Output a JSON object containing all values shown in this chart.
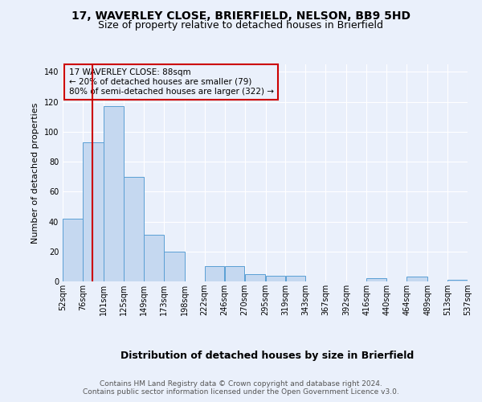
{
  "title_line1": "17, WAVERLEY CLOSE, BRIERFIELD, NELSON, BB9 5HD",
  "title_line2": "Size of property relative to detached houses in Brierfield",
  "xlabel": "Distribution of detached houses by size in Brierfield",
  "ylabel": "Number of detached properties",
  "footer_line1": "Contains HM Land Registry data © Crown copyright and database right 2024.",
  "footer_line2": "Contains public sector information licensed under the Open Government Licence v3.0.",
  "annotation_line1": "17 WAVERLEY CLOSE: 88sqm",
  "annotation_line2": "← 20% of detached houses are smaller (79)",
  "annotation_line3": "80% of semi-detached houses are larger (322) →",
  "property_size": 88,
  "bar_left_edges": [
    52,
    76,
    101,
    125,
    149,
    173,
    198,
    222,
    246,
    270,
    295,
    319,
    343,
    367,
    392,
    416,
    440,
    464,
    489,
    513
  ],
  "bar_widths": [
    24,
    25,
    24,
    24,
    24,
    25,
    24,
    24,
    24,
    25,
    24,
    24,
    24,
    25,
    24,
    24,
    24,
    25,
    24,
    24
  ],
  "bar_heights": [
    42,
    93,
    117,
    70,
    31,
    20,
    0,
    10,
    10,
    5,
    4,
    4,
    0,
    0,
    0,
    2,
    0,
    3,
    0,
    1
  ],
  "bar_color": "#c5d8f0",
  "bar_edge_color": "#5a9fd4",
  "vline_x": 88,
  "vline_color": "#cc0000",
  "annotation_box_color": "#cc0000",
  "ylim": [
    0,
    145
  ],
  "yticks": [
    0,
    20,
    40,
    60,
    80,
    100,
    120,
    140
  ],
  "xlim": [
    52,
    537
  ],
  "xtick_labels": [
    "52sqm",
    "76sqm",
    "101sqm",
    "125sqm",
    "149sqm",
    "173sqm",
    "198sqm",
    "222sqm",
    "246sqm",
    "270sqm",
    "295sqm",
    "319sqm",
    "343sqm",
    "367sqm",
    "392sqm",
    "416sqm",
    "440sqm",
    "464sqm",
    "489sqm",
    "513sqm",
    "537sqm"
  ],
  "xtick_positions": [
    52,
    76,
    101,
    125,
    149,
    173,
    198,
    222,
    246,
    270,
    295,
    319,
    343,
    367,
    392,
    416,
    440,
    464,
    489,
    513,
    537
  ],
  "background_color": "#eaf0fb",
  "grid_color": "#ffffff",
  "title_fontsize": 10,
  "subtitle_fontsize": 9,
  "ylabel_fontsize": 8,
  "xlabel_fontsize": 9,
  "tick_fontsize": 7,
  "footer_fontsize": 6.5
}
